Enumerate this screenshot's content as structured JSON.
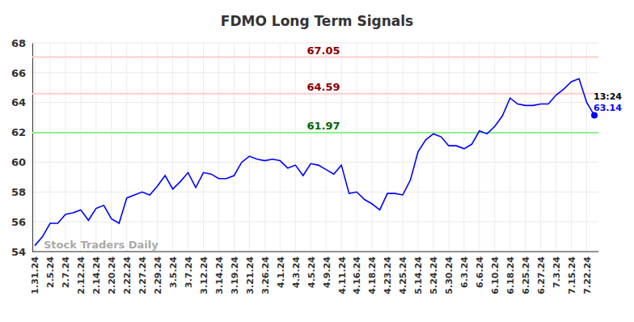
{
  "chart_data": {
    "type": "line",
    "title": "FDMO Long Term Signals",
    "watermark": "Stock Traders Daily",
    "categories": [
      "1.31.24",
      null,
      "2.5.24",
      null,
      "2.7.24",
      null,
      "2.12.24",
      null,
      "2.14.24",
      null,
      "2.20.24",
      null,
      "2.22.24",
      null,
      "2.27.24",
      null,
      "2.29.24",
      null,
      "3.5.24",
      null,
      "3.7.24",
      null,
      "3.12.24",
      null,
      "3.14.24",
      null,
      "3.19.24",
      null,
      "3.21.24",
      null,
      "3.26.24",
      null,
      "4.1.24",
      null,
      "4.3.24",
      null,
      "4.5.24",
      null,
      "4.9.24",
      null,
      "4.11.24",
      null,
      "4.16.24",
      null,
      "4.18.24",
      null,
      "4.23.24",
      null,
      "4.25.24",
      null,
      "5.14.24",
      null,
      "5.24.24",
      null,
      "5.30.24",
      null,
      "6.3.24",
      null,
      "6.6.24",
      null,
      "6.10.24",
      null,
      "6.18.24",
      null,
      "6.25.24",
      null,
      "6.27.24",
      null,
      "7.3.24",
      null,
      "7.15.24",
      null,
      "7.22.24",
      null
    ],
    "values": [
      54.4,
      55.0,
      55.9,
      55.9,
      56.5,
      56.6,
      56.8,
      56.1,
      56.9,
      57.1,
      56.2,
      55.9,
      57.6,
      57.8,
      58.0,
      57.8,
      58.4,
      59.1,
      58.2,
      58.7,
      59.3,
      58.3,
      59.3,
      59.2,
      58.9,
      58.9,
      59.1,
      60.0,
      60.4,
      60.2,
      60.1,
      60.2,
      60.1,
      59.6,
      59.8,
      59.1,
      59.9,
      59.8,
      59.5,
      59.2,
      59.8,
      57.9,
      58.0,
      57.5,
      57.2,
      56.8,
      57.9,
      57.9,
      57.8,
      58.8,
      60.7,
      61.5,
      61.9,
      61.7,
      61.1,
      61.1,
      60.9,
      61.2,
      62.1,
      61.9,
      62.4,
      63.1,
      64.3,
      63.9,
      63.8,
      63.8,
      63.9,
      63.9,
      64.5,
      64.9,
      65.4,
      65.6,
      64.0,
      63.14
    ],
    "color": "#0000ff",
    "ylim": [
      54,
      68
    ],
    "yticks": [
      54,
      56,
      58,
      60,
      62,
      64,
      66,
      68
    ],
    "grid": true,
    "levels": [
      {
        "value": 67.05,
        "color": "#ffcccc",
        "label_color": "#8b0000"
      },
      {
        "value": 64.59,
        "color": "#ffcccc",
        "label_color": "#8b0000"
      },
      {
        "value": 61.97,
        "color": "#90ee90",
        "label_color": "#006400"
      }
    ],
    "last_label": {
      "time": "13:24",
      "value": 63.14
    }
  }
}
